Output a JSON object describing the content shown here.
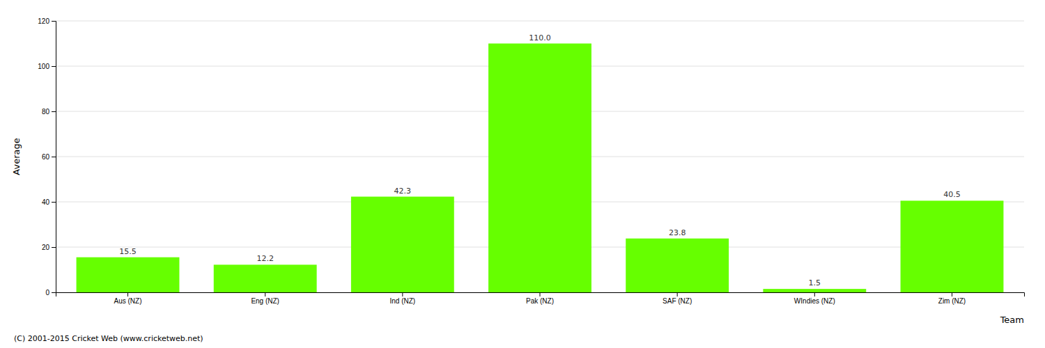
{
  "chart_data": {
    "type": "bar",
    "categories": [
      "Aus (NZ)",
      "Eng (NZ)",
      "Ind (NZ)",
      "Pak (NZ)",
      "SAF (NZ)",
      "WIndies (NZ)",
      "Zim (NZ)"
    ],
    "values": [
      15.5,
      12.2,
      42.3,
      110.0,
      23.8,
      1.5,
      40.5
    ],
    "value_labels": [
      "15.5",
      "12.2",
      "42.3",
      "110.0",
      "23.8",
      "1.5",
      "40.5"
    ],
    "color": "#66ff00",
    "xlabel": "Team",
    "ylabel": "Average",
    "ylim": [
      0,
      120
    ],
    "yticks": [
      0,
      20,
      40,
      60,
      80,
      100,
      120
    ],
    "grid": true,
    "data_labels": true,
    "annotations": [
      "(C) 2001-2015 Cricket Web (www.cricketweb.net)"
    ]
  }
}
